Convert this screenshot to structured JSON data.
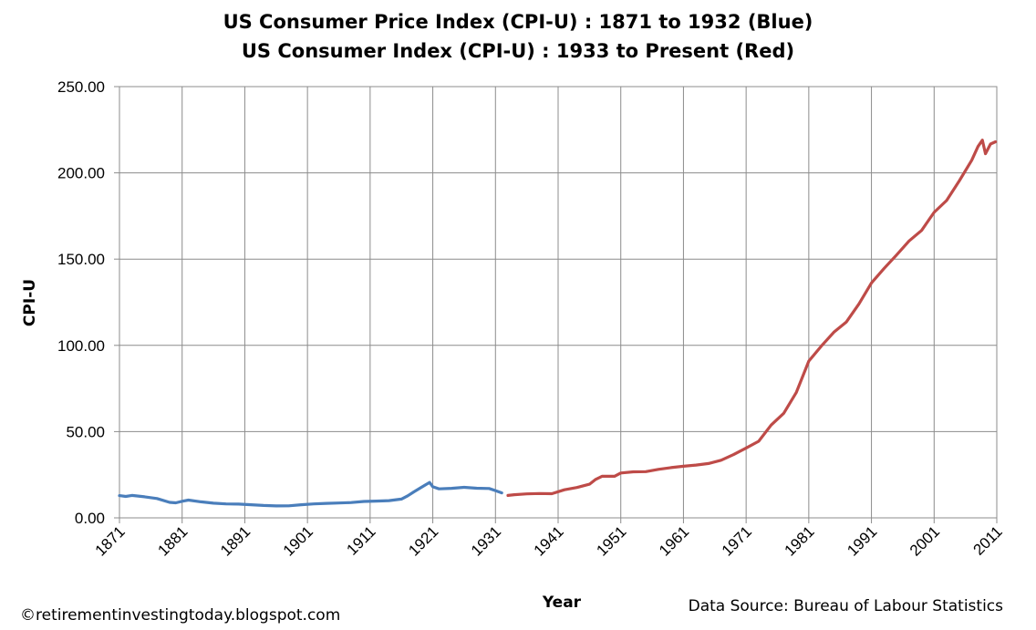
{
  "chart_data": {
    "type": "line",
    "title": "US Consumer Price Index (CPI-U) : 1871 to 1932 (Blue)",
    "subtitle": "US Consumer Index (CPI-U) : 1933 to Present (Red)",
    "xlabel": "Year",
    "ylabel": "CPI-U",
    "xlim": [
      1871,
      2011
    ],
    "ylim": [
      0,
      250
    ],
    "x_ticks": [
      "1871",
      "1881",
      "1891",
      "1901",
      "1911",
      "1921",
      "1931",
      "1941",
      "1951",
      "1961",
      "1971",
      "1981",
      "1991",
      "2001",
      "2011"
    ],
    "y_ticks": [
      "0.00",
      "50.00",
      "100.00",
      "150.00",
      "200.00",
      "250.00"
    ],
    "grid": true,
    "series": [
      {
        "color": "#4a7ebb",
        "x": [
          1871,
          1872,
          1873,
          1875,
          1877,
          1879,
          1880,
          1881,
          1882,
          1884,
          1886,
          1888,
          1890,
          1892,
          1894,
          1896,
          1898,
          1900,
          1902,
          1904,
          1906,
          1908,
          1910,
          1912,
          1914,
          1916,
          1917,
          1918,
          1919,
          1920,
          1920.5,
          1921,
          1922,
          1924,
          1926,
          1928,
          1930,
          1931,
          1932
        ],
        "y": [
          12.9,
          12.4,
          13.0,
          12.2,
          11.2,
          9.0,
          8.7,
          9.6,
          10.3,
          9.3,
          8.5,
          8.1,
          8.0,
          7.6,
          7.2,
          6.9,
          7.0,
          7.6,
          8.1,
          8.4,
          8.6,
          8.9,
          9.5,
          9.7,
          10.0,
          10.9,
          12.8,
          15.1,
          17.3,
          19.5,
          20.5,
          18.0,
          16.8,
          17.1,
          17.7,
          17.2,
          17.0,
          15.8,
          14.5
        ]
      },
      {
        "color": "#be4b48",
        "x": [
          1933,
          1934,
          1936,
          1938,
          1940,
          1942,
          1944,
          1946,
          1947,
          1948,
          1950,
          1951,
          1953,
          1955,
          1957,
          1959,
          1961,
          1963,
          1965,
          1967,
          1969,
          1971,
          1973,
          1975,
          1977,
          1979,
          1981,
          1983,
          1985,
          1987,
          1989,
          1991,
          1993,
          1995,
          1997,
          1999,
          2001,
          2003,
          2005,
          2007,
          2008,
          2008.7,
          2009.2,
          2010,
          2010.8
        ],
        "y": [
          13.0,
          13.4,
          13.9,
          14.1,
          14.0,
          16.3,
          17.6,
          19.5,
          22.3,
          24.1,
          24.1,
          26.0,
          26.7,
          26.8,
          28.1,
          29.1,
          29.9,
          30.6,
          31.5,
          33.4,
          36.7,
          40.5,
          44.4,
          53.8,
          60.6,
          72.6,
          90.9,
          99.6,
          107.6,
          113.6,
          124.0,
          136.2,
          144.5,
          152.4,
          160.5,
          166.6,
          177.1,
          184.0,
          195.3,
          207.3,
          215.3,
          219.0,
          211.1,
          216.7,
          218.0
        ]
      }
    ]
  },
  "footer": {
    "left": "©retirementinvestingtoday.blogspot.com",
    "right": "Data Source: Bureau  of Labour Statistics"
  }
}
